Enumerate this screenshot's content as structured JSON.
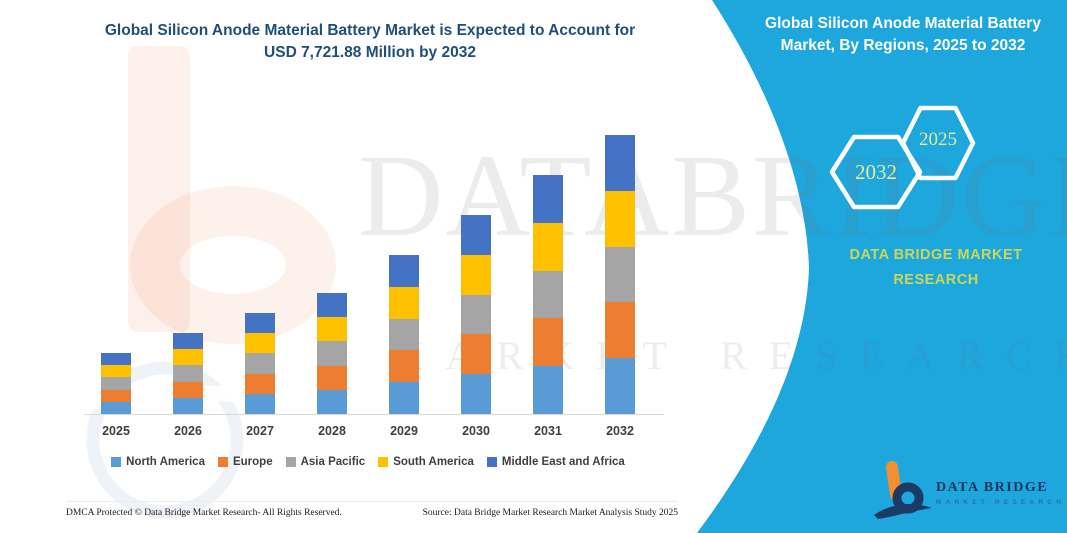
{
  "left_panel": {
    "title_line1": "Global Silicon Anode Material Battery Market is Expected to Account for",
    "title_line2": "USD 7,721.88 Million by 2032",
    "footer_left": "DMCA Protected © Data Bridge Market Research-  All Rights Reserved.",
    "footer_right": "Source: Data Bridge Market Research  Market Analysis Study 2025"
  },
  "right_panel": {
    "background_color": "#1EA7DC",
    "title_line1": "Global Silicon Anode Material Battery",
    "title_line2": "Market, By Regions, 2025 to 2032",
    "hexagons": [
      {
        "label": "2032"
      },
      {
        "label": "2025"
      }
    ],
    "hexagon_year_color": "#E4E99B",
    "brand_line1": "DATA BRIDGE MARKET",
    "brand_line2": "RESEARCH",
    "brand_text_color": "#C9D75A",
    "logo_name": "DATA BRIDGE",
    "logo_subname": "MARKET RESEARCH"
  },
  "watermark": {
    "row1": "DATABRIDGE",
    "row2": "MARKET RESEARCH"
  },
  "chart_data": {
    "type": "bar",
    "stacked": true,
    "title": "Global Silicon Anode Material Battery Market is Expected to Account for USD 7,721.88 Million by 2032",
    "unit": "USD Million",
    "categories": [
      "2025",
      "2026",
      "2027",
      "2028",
      "2029",
      "2030",
      "2031",
      "2032"
    ],
    "series": [
      {
        "name": "North America",
        "color": "#5B9BD5",
        "values": [
          337.6,
          448.4,
          559.2,
          669.8,
          880.2,
          1101.6,
          1323.0,
          1544.4
        ]
      },
      {
        "name": "Europe",
        "color": "#ED7D31",
        "values": [
          337.6,
          448.4,
          559.2,
          669.8,
          880.2,
          1101.6,
          1323.0,
          1544.4
        ]
      },
      {
        "name": "Asia Pacific",
        "color": "#A5A5A5",
        "values": [
          337.6,
          448.4,
          559.2,
          669.8,
          880.2,
          1101.6,
          1323.0,
          1544.4
        ]
      },
      {
        "name": "South America",
        "color": "#FFC000",
        "values": [
          337.6,
          448.4,
          559.2,
          669.8,
          880.2,
          1101.6,
          1323.0,
          1544.4
        ]
      },
      {
        "name": "Middle East and Africa",
        "color": "#4472C4",
        "values": [
          337.6,
          448.4,
          559.2,
          669.8,
          880.2,
          1101.6,
          1323.0,
          1544.4
        ]
      }
    ],
    "totals": [
      1688,
      2242,
      2796,
      3349,
      4401,
      5508,
      6615,
      7721.88
    ],
    "ylim": [
      0,
      7721.88
    ],
    "y_axis_visible": false,
    "gridlines": false,
    "legend_position": "bottom",
    "note": "Segment values estimated from bar pixel heights; 2032 total anchored to USD 7,721.88 Million stated in title."
  }
}
